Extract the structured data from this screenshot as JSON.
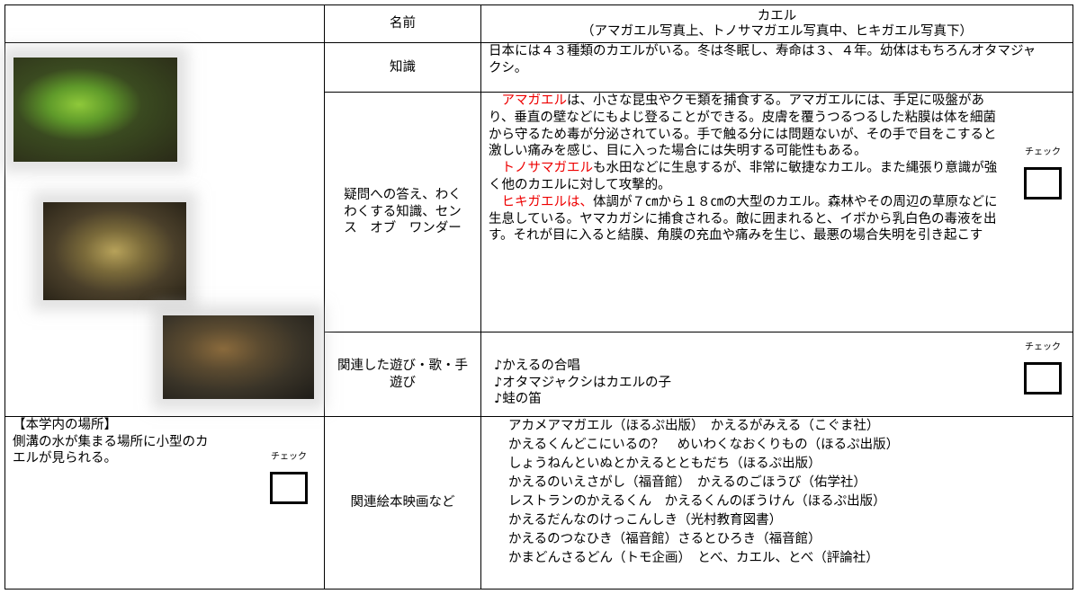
{
  "header": {
    "name_label": "名前",
    "name": "カエル",
    "photo_note": "（アマガエル写真上、トノサマガエル写真中、ヒキガエル写真下）"
  },
  "check_label": "チェック",
  "knowledge": {
    "label": "知識",
    "text": "日本には４３種類のカエルがいる。冬は冬眠し、寿命は３、４年。幼体はもちろんオタマジャクシ。"
  },
  "qa": {
    "label": "疑問への答え、わくわくする知識、センス　オブ　ワンダー",
    "paragraphs": [
      {
        "highlight": "アマガエル",
        "text": "は、小さな昆虫やクモ類を捕食する。アマガエルには、手足に吸盤があり、垂直の壁などにもよじ登ることができる。皮膚を覆うつるつるした粘膜は体を細菌から守るため毒が分泌されている。手で触る分には問題ないが、その手で目をこすると激しい痛みを感じ、目に入った場合には失明する可能性もある。"
      },
      {
        "highlight": "トノサマガエル",
        "text": "も水田などに生息するが、非常に敏捷なカエル。また縄張り意識が強く他のカエルに対して攻撃的。"
      },
      {
        "highlight": "ヒキガエルは、",
        "text": "体調が７㎝から１８㎝の大型のカエル。森林やその周辺の草原などに生息している。ヤマカガシに捕食される。敵に囲まれると、イボから乳白色の毒液を出す。それが目に入ると結膜、角膜の充血や痛みを生じ、最悪の場合失明を引き起こす"
      }
    ]
  },
  "play": {
    "label": "関連した遊び・歌・手遊び",
    "items": [
      "♪かえるの合唱",
      "♪オタマジャクシはカエルの子",
      "♪蛙の笛"
    ]
  },
  "location": {
    "title": "【本学内の場所】",
    "text": "側溝の水が集まる場所に小型のカエルが見られる。"
  },
  "books": {
    "label": "関連絵本映画など",
    "items": [
      "アカメアマガエル（ほるぷ出版）　かえるがみえる（こぐま社）",
      "かえるくんどこにいるの？　めいわくなおくりもの（ほるぷ出版）",
      "しょうねんといぬとかえるとともだち（ほるぷ出版）",
      "かえるのいえさがし（福音館）　かえるのごほうび（佑学社）",
      "レストランのかえるくん　かえるくんのぼうけん（ほるぷ出版）",
      "かえるだんなのけっこんしき（光村教育図書）",
      "かえるのつなひき（福音館）さるとひろき（福音館）",
      "かまどんさるどん（トモ企画）　とべ、カエル、とべ（評論社）"
    ]
  }
}
